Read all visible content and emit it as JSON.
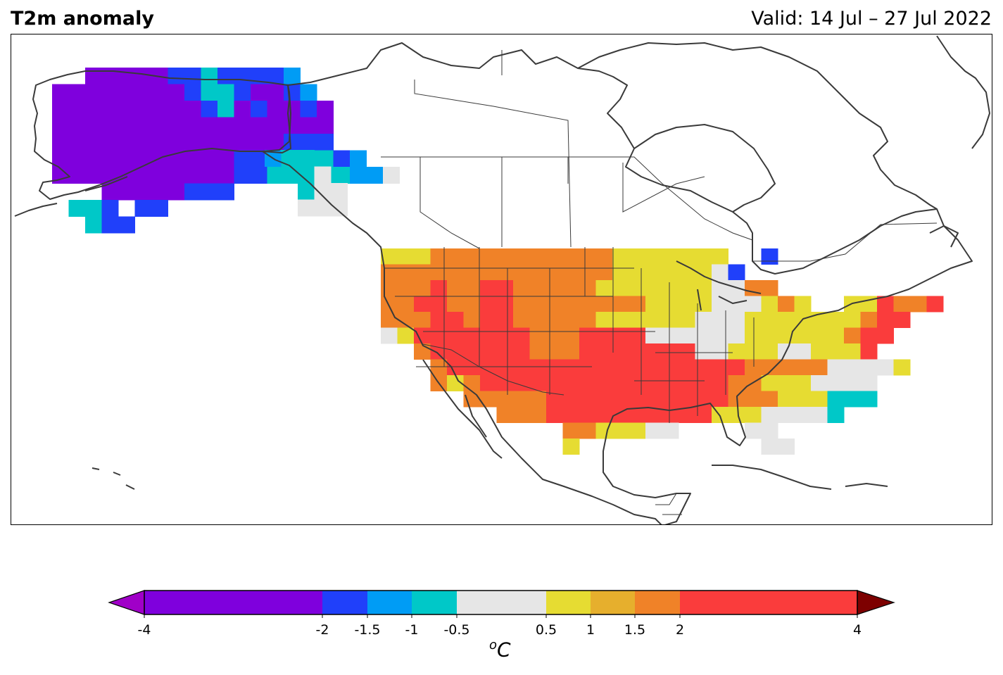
{
  "header": {
    "title": "T2m anomaly",
    "valid": "Valid: 14 Jul – 27 Jul 2022"
  },
  "colorbar": {
    "unit_sup": "o",
    "unit_main": "C",
    "bins": [
      {
        "from": -4,
        "to": -2,
        "color": "#7f00dd"
      },
      {
        "from": -2,
        "to": -1.5,
        "color": "#2040fa"
      },
      {
        "from": -1.5,
        "to": -1,
        "color": "#009cf5"
      },
      {
        "from": -1,
        "to": -0.5,
        "color": "#00c8c8"
      },
      {
        "from": -0.5,
        "to": 0.5,
        "color": "#e6e6e6"
      },
      {
        "from": 0.5,
        "to": 1,
        "color": "#e6dc32"
      },
      {
        "from": 1,
        "to": 1.5,
        "color": "#e6af2d"
      },
      {
        "from": 1.5,
        "to": 2,
        "color": "#f08228"
      },
      {
        "from": 2,
        "to": 4,
        "color": "#fa3c3c"
      }
    ],
    "under_color": "#a000c8",
    "over_color": "#7d0000",
    "ticks": [
      {
        "value": -4,
        "label": "-4"
      },
      {
        "value": -2,
        "label": "-2"
      },
      {
        "value": -1.5,
        "label": "-1.5"
      },
      {
        "value": -1,
        "label": "-1"
      },
      {
        "value": -0.5,
        "label": "-0.5"
      },
      {
        "value": 0.5,
        "label": "0.5"
      },
      {
        "value": 1,
        "label": "1"
      },
      {
        "value": 1.5,
        "label": "1.5"
      },
      {
        "value": 2,
        "label": "2"
      },
      {
        "value": 4,
        "label": "4"
      }
    ]
  },
  "anomaly_field": {
    "alaska": [
      "....pppppbbcbbbbt",
      "..ppppppppbccbppbt",
      "..pppppppppbcpbppbp",
      "..ppppppppppppppppp",
      "..ppppppppppppppbbb",
      "..pppppppppppbbbbccbt",
      "..pppppppppppbbcccccttw",
      ".....pppppbbb",
      "...ccb.bb",
      "....cbb"
    ],
    "pnw_coast": [
      "tcc",
      ".ccw",
      "..cww",
      "..www"
    ],
    "conus": [
      "yyyoooooooooooyyyyyyy..b",
      "ooooooooooooooyyyyyywb",
      "oooroorroooooyyyyyyywwoo",
      "oorroorrooooooooyyyywwwyoy..yyroor",
      "ooorrorroooooyyyyyywwwyyyyyyyorr",
      "wyrrrrrrrooorrrrwwwwwwyyyyyyorr",
      "..orrrrrrooorrrrrrrwwyyywwyyyr",
      "...orrrrrrrrrrrrrrrrrrooooowwwwy",
      "...oyorrrrrrrrrrrrrrrooyyywwww",
      ".....ooooorrrrrrrrrrroooyyyccc",
      ".......ooorrrrrrrrrryyywwwwc",
      "...........ooyyyww....ww",
      "...........y...........ww"
    ]
  }
}
